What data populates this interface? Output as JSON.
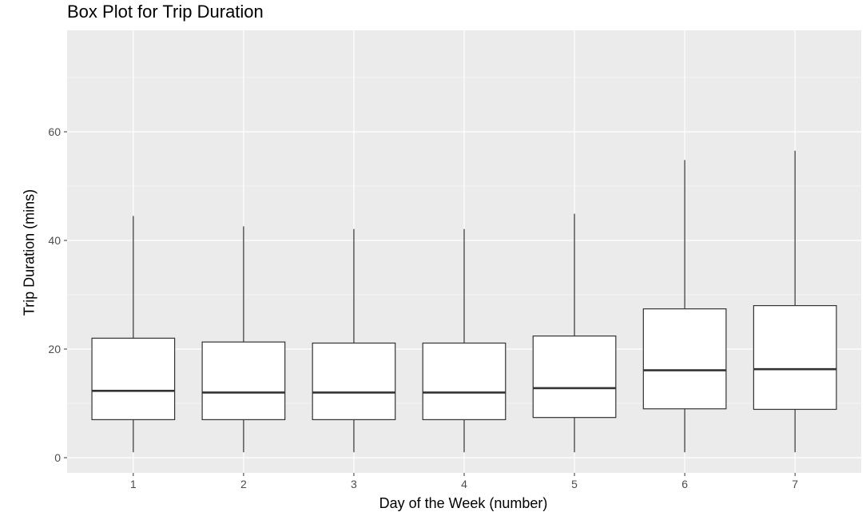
{
  "chart_data": {
    "type": "boxplot",
    "title": "Box Plot for Trip Duration",
    "xlabel": "Day of the Week (number)",
    "ylabel": "Trip Duration (mins)",
    "categories": [
      "1",
      "2",
      "3",
      "4",
      "5",
      "6",
      "7"
    ],
    "y_ticks": [
      "0",
      "20",
      "40",
      "60"
    ],
    "ylim": [
      -2,
      79
    ],
    "grid": true,
    "boxes": [
      {
        "category": "1",
        "whisker_low": 1,
        "q1": 7.0,
        "median": 12.3,
        "q3": 22.0,
        "whisker_high": 44.5
      },
      {
        "category": "2",
        "whisker_low": 1,
        "q1": 7.0,
        "median": 12.0,
        "q3": 21.3,
        "whisker_high": 42.6
      },
      {
        "category": "3",
        "whisker_low": 1,
        "q1": 7.0,
        "median": 12.0,
        "q3": 21.1,
        "whisker_high": 42.1
      },
      {
        "category": "4",
        "whisker_low": 1,
        "q1": 7.0,
        "median": 12.0,
        "q3": 21.1,
        "whisker_high": 42.1
      },
      {
        "category": "5",
        "whisker_low": 1,
        "q1": 7.4,
        "median": 12.8,
        "q3": 22.4,
        "whisker_high": 44.9
      },
      {
        "category": "6",
        "whisker_low": 1,
        "q1": 9.0,
        "median": 16.1,
        "q3": 27.4,
        "whisker_high": 54.8
      },
      {
        "category": "7",
        "whisker_low": 1,
        "q1": 8.9,
        "median": 16.3,
        "q3": 28.0,
        "whisker_high": 56.5
      }
    ],
    "colors": {
      "panel_background": "#ebebeb",
      "grid_major": "#ffffff",
      "box_fill": "#ffffff",
      "box_stroke": "#333333",
      "tick_text": "#4d4d4d",
      "tick_mark": "#333333"
    }
  }
}
